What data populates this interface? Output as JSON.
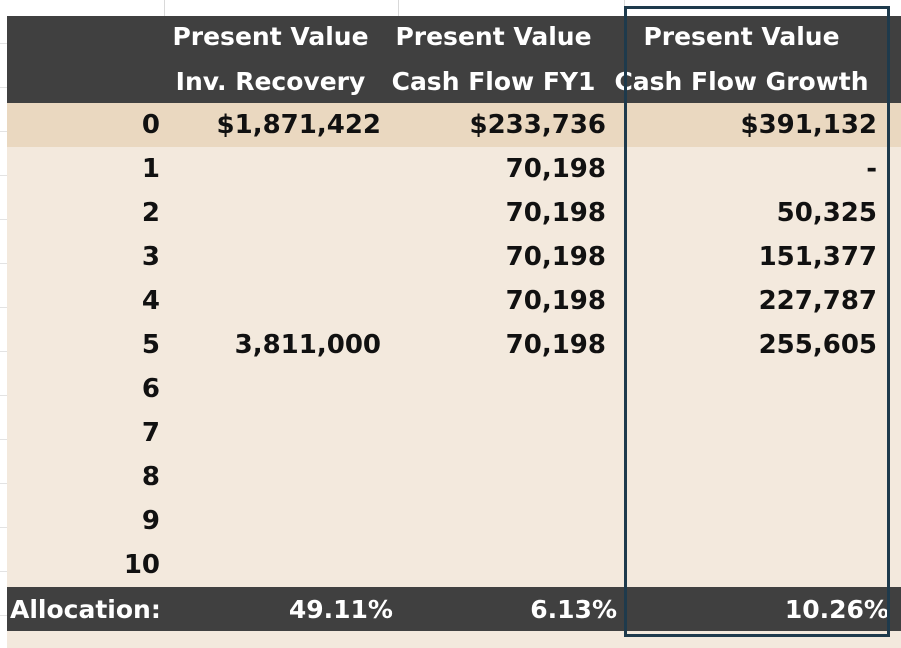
{
  "header": {
    "col1": [
      "Present Value",
      "Inv. Recovery"
    ],
    "col2": [
      "Present Value",
      "Cash Flow FY1"
    ],
    "col3": [
      "Present Value",
      "Cash Flow Growth"
    ]
  },
  "rows": [
    {
      "year": "0",
      "inv_recovery": "$1,871,422",
      "cash_flow_fy1": "$233,736",
      "cash_flow_growth": "$391,132"
    },
    {
      "year": "1",
      "inv_recovery": "",
      "cash_flow_fy1": "70,198",
      "cash_flow_growth": "-"
    },
    {
      "year": "2",
      "inv_recovery": "",
      "cash_flow_fy1": "70,198",
      "cash_flow_growth": "50,325"
    },
    {
      "year": "3",
      "inv_recovery": "",
      "cash_flow_fy1": "70,198",
      "cash_flow_growth": "151,377"
    },
    {
      "year": "4",
      "inv_recovery": "",
      "cash_flow_fy1": "70,198",
      "cash_flow_growth": "227,787"
    },
    {
      "year": "5",
      "inv_recovery": "3,811,000",
      "cash_flow_fy1": "70,198",
      "cash_flow_growth": "255,605"
    },
    {
      "year": "6",
      "inv_recovery": "",
      "cash_flow_fy1": "",
      "cash_flow_growth": ""
    },
    {
      "year": "7",
      "inv_recovery": "",
      "cash_flow_fy1": "",
      "cash_flow_growth": ""
    },
    {
      "year": "8",
      "inv_recovery": "",
      "cash_flow_fy1": "",
      "cash_flow_growth": ""
    },
    {
      "year": "9",
      "inv_recovery": "",
      "cash_flow_fy1": "",
      "cash_flow_growth": ""
    },
    {
      "year": "10",
      "inv_recovery": "",
      "cash_flow_fy1": "",
      "cash_flow_growth": ""
    }
  ],
  "footer": {
    "label": "Allocation:",
    "inv_recovery": "49.11%",
    "cash_flow_fy1": "6.13%",
    "cash_flow_growth": "10.26%"
  },
  "colors": {
    "header_bg": "#404040",
    "row_bg": "#f3e9dd",
    "first_row_bg": "#ead8c0",
    "highlight_border": "#1e3a4c"
  }
}
